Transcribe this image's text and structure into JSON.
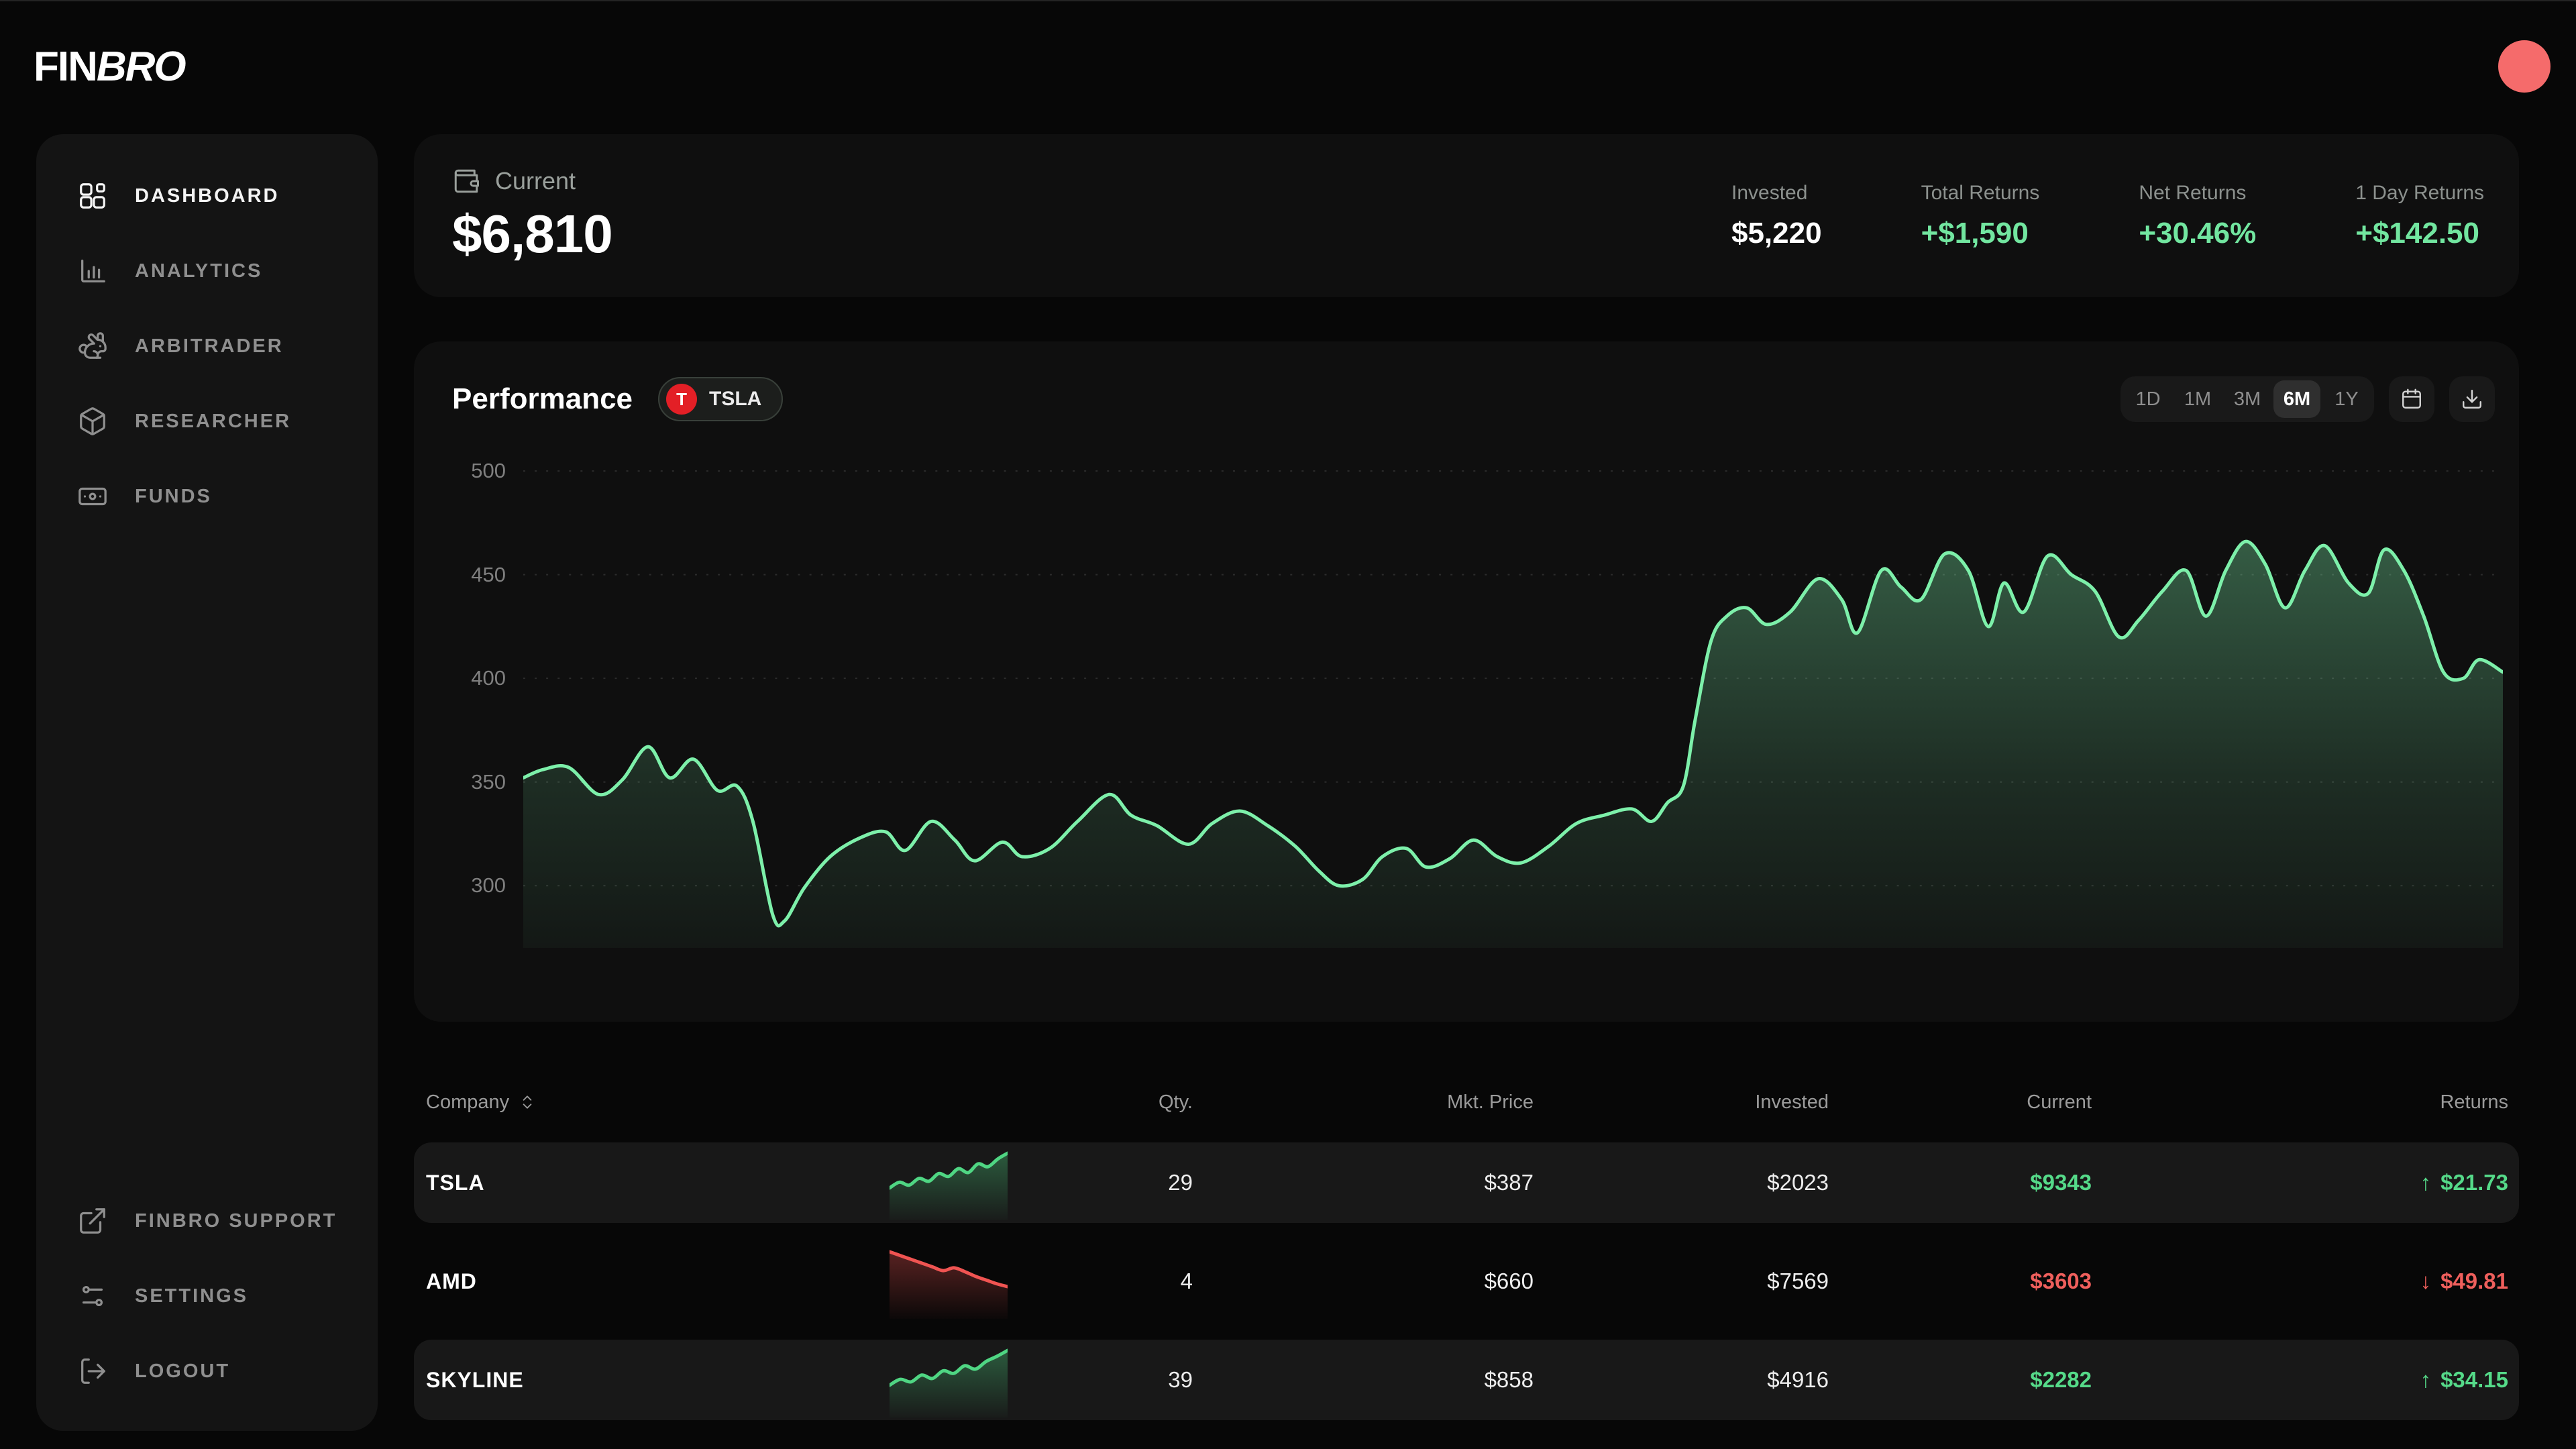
{
  "brand": {
    "name_regular": "FIN",
    "name_italic": "BRO"
  },
  "colors": {
    "green": "#72e6a0",
    "table_green": "#55da89",
    "red": "#ef5f5c",
    "chart_line": "#7df0aa",
    "tesla_red": "#e31f26",
    "coral": "#f56b6b"
  },
  "sidebar": {
    "nav": [
      {
        "label": "DASHBOARD",
        "icon": "dashboard-icon",
        "state": "active"
      },
      {
        "label": "ANALYTICS",
        "icon": "bar-chart-icon",
        "state": ""
      },
      {
        "label": "ARBITRADER",
        "icon": "rabbit-icon",
        "state": ""
      },
      {
        "label": "RESEARCHER",
        "icon": "cube-icon",
        "state": ""
      },
      {
        "label": "FUNDS",
        "icon": "banknote-icon",
        "state": ""
      }
    ],
    "footer": [
      {
        "label": "FINBRO SUPPORT",
        "icon": "external-link-icon"
      },
      {
        "label": "SETTINGS",
        "icon": "sliders-icon"
      },
      {
        "label": "LOGOUT",
        "icon": "logout-icon"
      }
    ]
  },
  "summary": {
    "label": "Current",
    "value": "$6,810",
    "stats": [
      {
        "label": "Invested",
        "value": "$5,220",
        "tone": "neutral"
      },
      {
        "label": "Total Returns",
        "value": "+$1,590",
        "tone": "positive"
      },
      {
        "label": "Net Returns",
        "value": "+30.46%",
        "tone": "positive"
      },
      {
        "label": "1 Day Returns",
        "value": "+$142.50",
        "tone": "positive"
      }
    ]
  },
  "performance": {
    "title": "Performance",
    "badge": {
      "symbol": "T",
      "label": "TSLA"
    },
    "ranges": [
      {
        "label": "1D",
        "state": ""
      },
      {
        "label": "1M",
        "state": ""
      },
      {
        "label": "3M",
        "state": ""
      },
      {
        "label": "6M",
        "state": "active"
      },
      {
        "label": "1Y",
        "state": ""
      }
    ]
  },
  "chart_data": {
    "type": "area",
    "title": "Performance",
    "symbol": "TSLA",
    "timeframe": "6M",
    "grid": "dashed-horizontal",
    "legend": "none",
    "yticks": [
      500,
      450,
      400,
      350,
      300
    ],
    "ylim": [
      270,
      512
    ],
    "series": [
      {
        "name": "TSLA",
        "points": [
          [
            0,
            352
          ],
          [
            1,
            356
          ],
          [
            2.3,
            357
          ],
          [
            3.8,
            344
          ],
          [
            5,
            351
          ],
          [
            6.3,
            367
          ],
          [
            7.4,
            352
          ],
          [
            8.6,
            361
          ],
          [
            9.8,
            346
          ],
          [
            10.8,
            348
          ],
          [
            11.6,
            331
          ],
          [
            12.6,
            286
          ],
          [
            13.2,
            283
          ],
          [
            14.2,
            299
          ],
          [
            15.5,
            314
          ],
          [
            17,
            323
          ],
          [
            18.3,
            326
          ],
          [
            19.3,
            317
          ],
          [
            20.6,
            331
          ],
          [
            21.8,
            322
          ],
          [
            22.8,
            312
          ],
          [
            24.2,
            321
          ],
          [
            25.2,
            314
          ],
          [
            26.6,
            318
          ],
          [
            28,
            331
          ],
          [
            29.6,
            344
          ],
          [
            30.7,
            334
          ],
          [
            32,
            329
          ],
          [
            33.6,
            320
          ],
          [
            34.8,
            330
          ],
          [
            36.2,
            336
          ],
          [
            37.6,
            329
          ],
          [
            39,
            319
          ],
          [
            40.2,
            307
          ],
          [
            41.2,
            300
          ],
          [
            42.4,
            303
          ],
          [
            43.4,
            314
          ],
          [
            44.6,
            318
          ],
          [
            45.6,
            309
          ],
          [
            46.8,
            313
          ],
          [
            48,
            322
          ],
          [
            49.2,
            314
          ],
          [
            50.4,
            311
          ],
          [
            51.8,
            319
          ],
          [
            53.2,
            330
          ],
          [
            54.6,
            334
          ],
          [
            56,
            337
          ],
          [
            57,
            331
          ],
          [
            57.8,
            340
          ],
          [
            58.6,
            348
          ],
          [
            59.2,
            380
          ],
          [
            60,
            418
          ],
          [
            60.8,
            430
          ],
          [
            61.8,
            434
          ],
          [
            62.8,
            426
          ],
          [
            64,
            432
          ],
          [
            65.4,
            448
          ],
          [
            66.6,
            438
          ],
          [
            67.4,
            422
          ],
          [
            68.6,
            452
          ],
          [
            69.6,
            444
          ],
          [
            70.6,
            438
          ],
          [
            71.8,
            460
          ],
          [
            73,
            452
          ],
          [
            74,
            425
          ],
          [
            74.8,
            446
          ],
          [
            75.8,
            432
          ],
          [
            77,
            459
          ],
          [
            78.2,
            450
          ],
          [
            79.4,
            442
          ],
          [
            80.6,
            420
          ],
          [
            81.6,
            428
          ],
          [
            82.8,
            442
          ],
          [
            84,
            452
          ],
          [
            85,
            430
          ],
          [
            86,
            452
          ],
          [
            87,
            466
          ],
          [
            88,
            455
          ],
          [
            89,
            434
          ],
          [
            90,
            452
          ],
          [
            91,
            464
          ],
          [
            92.2,
            446
          ],
          [
            93.2,
            441
          ],
          [
            94,
            462
          ],
          [
            95,
            452
          ],
          [
            96,
            430
          ],
          [
            97,
            403
          ],
          [
            98,
            400
          ],
          [
            98.8,
            409
          ],
          [
            100,
            403
          ]
        ]
      }
    ]
  },
  "holdings": {
    "header": {
      "company": "Company",
      "qty": "Qty.",
      "mkt_price": "Mkt. Price",
      "invested": "Invested",
      "current": "Current",
      "returns": "Returns"
    },
    "rows": [
      {
        "company": "TSLA",
        "qty": "29",
        "mkt_price": "$387",
        "invested": "$2023",
        "current": "$9343",
        "returns": "$21.73",
        "arrow": "↑",
        "tone": "positive",
        "trend": "up",
        "variant": "highlight",
        "spark": [
          30,
          36,
          33,
          40,
          37,
          45,
          42,
          50,
          46,
          55,
          52,
          60,
          66
        ]
      },
      {
        "company": "AMD",
        "qty": "4",
        "mkt_price": "$660",
        "invested": "$7569",
        "current": "$3603",
        "returns": "$49.81",
        "arrow": "↓",
        "tone": "negative",
        "trend": "down",
        "variant": "plain",
        "spark": [
          64,
          60,
          56,
          52,
          48,
          44,
          47,
          43,
          38,
          34,
          30,
          27
        ]
      },
      {
        "company": "SKYLINE",
        "qty": "39",
        "mkt_price": "$858",
        "invested": "$4916",
        "current": "$2282",
        "returns": "$34.15",
        "arrow": "↑",
        "tone": "positive",
        "trend": "up",
        "variant": "highlight",
        "spark": [
          26,
          33,
          30,
          38,
          34,
          43,
          40,
          49,
          45,
          54,
          60,
          67
        ]
      }
    ]
  }
}
